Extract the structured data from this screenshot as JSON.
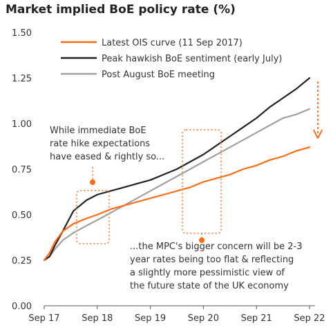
{
  "chart_data": {
    "type": "line",
    "title": "Market implied BoE policy rate (%)",
    "xlabel": "",
    "ylabel": "",
    "ylim": [
      0,
      1.5
    ],
    "xlim": [
      2017.75,
      2022.75
    ],
    "yticks": [
      "0.00",
      "0.25",
      "0.50",
      "0.75",
      "1.00",
      "1.25",
      "1.50"
    ],
    "xticks": [
      "Sep 17",
      "Sep 18",
      "Sep 19",
      "Sep 20",
      "Sep 21",
      "Sep 22"
    ],
    "grid": false,
    "legend_position": "top-left",
    "series": [
      {
        "name": "Latest OIS curve (11 Sep 2017)",
        "color": "#ff6a13",
        "x": [
          2017.75,
          2017.85,
          2017.95,
          2018.1,
          2018.3,
          2018.55,
          2018.75,
          2019.0,
          2019.25,
          2019.5,
          2019.75,
          2020.0,
          2020.25,
          2020.5,
          2020.75,
          2021.0,
          2021.25,
          2021.5,
          2021.75,
          2022.0,
          2022.25,
          2022.5,
          2022.75
        ],
        "y": [
          0.25,
          0.29,
          0.35,
          0.41,
          0.45,
          0.48,
          0.5,
          0.53,
          0.55,
          0.57,
          0.59,
          0.61,
          0.63,
          0.65,
          0.68,
          0.7,
          0.72,
          0.75,
          0.77,
          0.8,
          0.82,
          0.85,
          0.87
        ]
      },
      {
        "name": "Peak hawkish BoE sentiment (early July)",
        "color": "#222222",
        "x": [
          2017.75,
          2017.85,
          2017.95,
          2018.1,
          2018.3,
          2018.55,
          2018.75,
          2019.0,
          2019.25,
          2019.5,
          2019.75,
          2020.0,
          2020.25,
          2020.5,
          2020.75,
          2021.0,
          2021.25,
          2021.5,
          2021.75,
          2022.0,
          2022.25,
          2022.5,
          2022.75
        ],
        "y": [
          0.25,
          0.27,
          0.33,
          0.41,
          0.52,
          0.58,
          0.61,
          0.63,
          0.65,
          0.67,
          0.69,
          0.72,
          0.75,
          0.79,
          0.83,
          0.88,
          0.93,
          0.98,
          1.03,
          1.09,
          1.14,
          1.19,
          1.25
        ]
      },
      {
        "name": "Post August BoE meeting",
        "color": "#a0a0a0",
        "x": [
          2017.75,
          2017.85,
          2017.95,
          2018.1,
          2018.3,
          2018.55,
          2018.75,
          2019.0,
          2019.25,
          2019.5,
          2019.75,
          2020.0,
          2020.25,
          2020.5,
          2020.75,
          2021.0,
          2021.25,
          2021.5,
          2021.75,
          2022.0,
          2022.25,
          2022.5,
          2022.75
        ],
        "y": [
          0.25,
          0.27,
          0.31,
          0.36,
          0.4,
          0.44,
          0.47,
          0.51,
          0.55,
          0.59,
          0.63,
          0.67,
          0.71,
          0.75,
          0.79,
          0.83,
          0.87,
          0.91,
          0.95,
          0.99,
          1.03,
          1.05,
          1.08
        ]
      }
    ],
    "annotations": [
      {
        "id": "near",
        "lines": [
          "While immediate BoE",
          "rate hike expectations",
          "have eased & rightly so..."
        ]
      },
      {
        "id": "far",
        "lines": [
          "...the MPC's bigger concern will be 2-3",
          "year rates being too flat & reflecting",
          "a slightly more pessimistic view of",
          "the future state of the UK economy"
        ]
      }
    ],
    "annotation_color": "#f0a070"
  }
}
